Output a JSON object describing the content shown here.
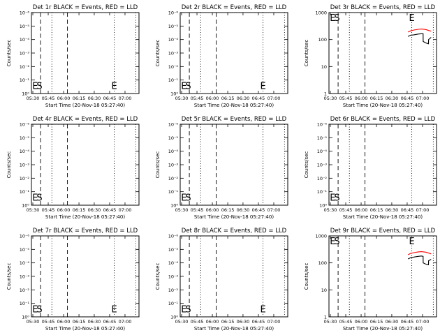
{
  "figure": {
    "xlabel": "Start Time (20-Nov-18 05:27:40)",
    "ylabel": "Counts/sec",
    "xticks": [
      "05:30",
      "05:45",
      "06:00",
      "06:15",
      "06:30",
      "06:45",
      "07:00"
    ],
    "colors": {
      "events": "#000000",
      "lld": "#ff0000",
      "axes": "#000000"
    }
  },
  "chart_data": [
    {
      "type": "line",
      "title": "Det 1r BLACK = Events, RED = LLD",
      "scale": "exp",
      "yticks": [
        "10⁰",
        "10⁻¹",
        "10⁻²",
        "10⁻³",
        "10⁻⁴",
        "10⁻⁵",
        "10⁻⁶"
      ],
      "markers": [
        "S",
        "E",
        "E"
      ],
      "series": []
    },
    {
      "type": "line",
      "title": "Det 2r BLACK = Events, RED = LLD",
      "scale": "exp",
      "yticks": [
        "10⁰",
        "10⁻¹",
        "10⁻²",
        "10⁻³",
        "10⁻⁴",
        "10⁻⁵",
        "10⁻⁶"
      ],
      "markers": [
        "S",
        "E",
        "E"
      ],
      "series": []
    },
    {
      "type": "line",
      "title": "Det 3r BLACK = Events, RED = LLD",
      "scale": "log",
      "yticks": [
        "1",
        "10",
        "100",
        "1000"
      ],
      "markers": [
        "S",
        "E",
        "E"
      ],
      "series": [
        {
          "color": "#000000",
          "x": [
            0.735,
            0.76,
            0.79,
            0.83,
            0.86,
            0.875,
            0.876,
            0.9,
            0.925,
            0.926,
            0.95
          ],
          "y": [
            130,
            145,
            150,
            160,
            165,
            165,
            85,
            75,
            70,
            100,
            120
          ]
        },
        {
          "color": "#ff0000",
          "x": [
            0.735,
            0.76,
            0.79,
            0.83,
            0.86,
            0.9,
            0.93,
            0.95
          ],
          "y": [
            190,
            210,
            225,
            240,
            245,
            235,
            215,
            205
          ]
        }
      ]
    },
    {
      "type": "line",
      "title": "Det 4r BLACK = Events, RED = LLD",
      "scale": "exp",
      "yticks": [
        "10⁰",
        "10⁻¹",
        "10⁻²",
        "10⁻³",
        "10⁻⁴",
        "10⁻⁵",
        "10⁻⁶"
      ],
      "markers": [
        "S",
        "E"
      ],
      "series": []
    },
    {
      "type": "line",
      "title": "Det 5r BLACK = Events, RED = LLD",
      "scale": "exp",
      "yticks": [
        "10⁰",
        "10⁻¹",
        "10⁻²",
        "10⁻³",
        "10⁻⁴",
        "10⁻⁵",
        "10⁻⁶"
      ],
      "markers": [
        "S",
        "E"
      ],
      "series": []
    },
    {
      "type": "line",
      "title": "Det 6r BLACK = Events, RED = LLD",
      "scale": "exp",
      "yticks": [
        "10⁰",
        "10⁻¹",
        "10⁻²",
        "10⁻³",
        "10⁻⁴",
        "10⁻⁵",
        "10⁻⁶"
      ],
      "markers": [
        "S",
        "E"
      ],
      "series": []
    },
    {
      "type": "line",
      "title": "Det 7r BLACK = Events, RED = LLD",
      "scale": "exp",
      "yticks": [
        "10⁰",
        "10⁻¹",
        "10⁻²",
        "10⁻³",
        "10⁻⁴",
        "10⁻⁵",
        "10⁻⁶"
      ],
      "markers": [
        "S",
        "E",
        "E"
      ],
      "series": []
    },
    {
      "type": "line",
      "title": "Det 8r BLACK = Events, RED = LLD",
      "scale": "exp",
      "yticks": [
        "10⁰",
        "10⁻¹",
        "10⁻²",
        "10⁻³",
        "10⁻⁴",
        "10⁻⁵",
        "10⁻⁶"
      ],
      "markers": [
        "S",
        "E",
        "E"
      ],
      "series": []
    },
    {
      "type": "line",
      "title": "Det 9r BLACK = Events, RED = LLD",
      "scale": "log",
      "yticks": [
        "1",
        "10",
        "100",
        "1000"
      ],
      "markers": [
        "S",
        "E",
        "E"
      ],
      "series": [
        {
          "color": "#000000",
          "x": [
            0.735,
            0.76,
            0.79,
            0.83,
            0.86,
            0.875,
            0.876,
            0.9,
            0.925,
            0.926,
            0.95
          ],
          "y": [
            140,
            155,
            165,
            175,
            180,
            175,
            100,
            90,
            85,
            120,
            135
          ]
        },
        {
          "color": "#ff0000",
          "x": [
            0.735,
            0.76,
            0.79,
            0.83,
            0.86,
            0.9,
            0.93,
            0.95
          ],
          "y": [
            200,
            225,
            240,
            255,
            260,
            250,
            230,
            215
          ]
        }
      ]
    }
  ]
}
